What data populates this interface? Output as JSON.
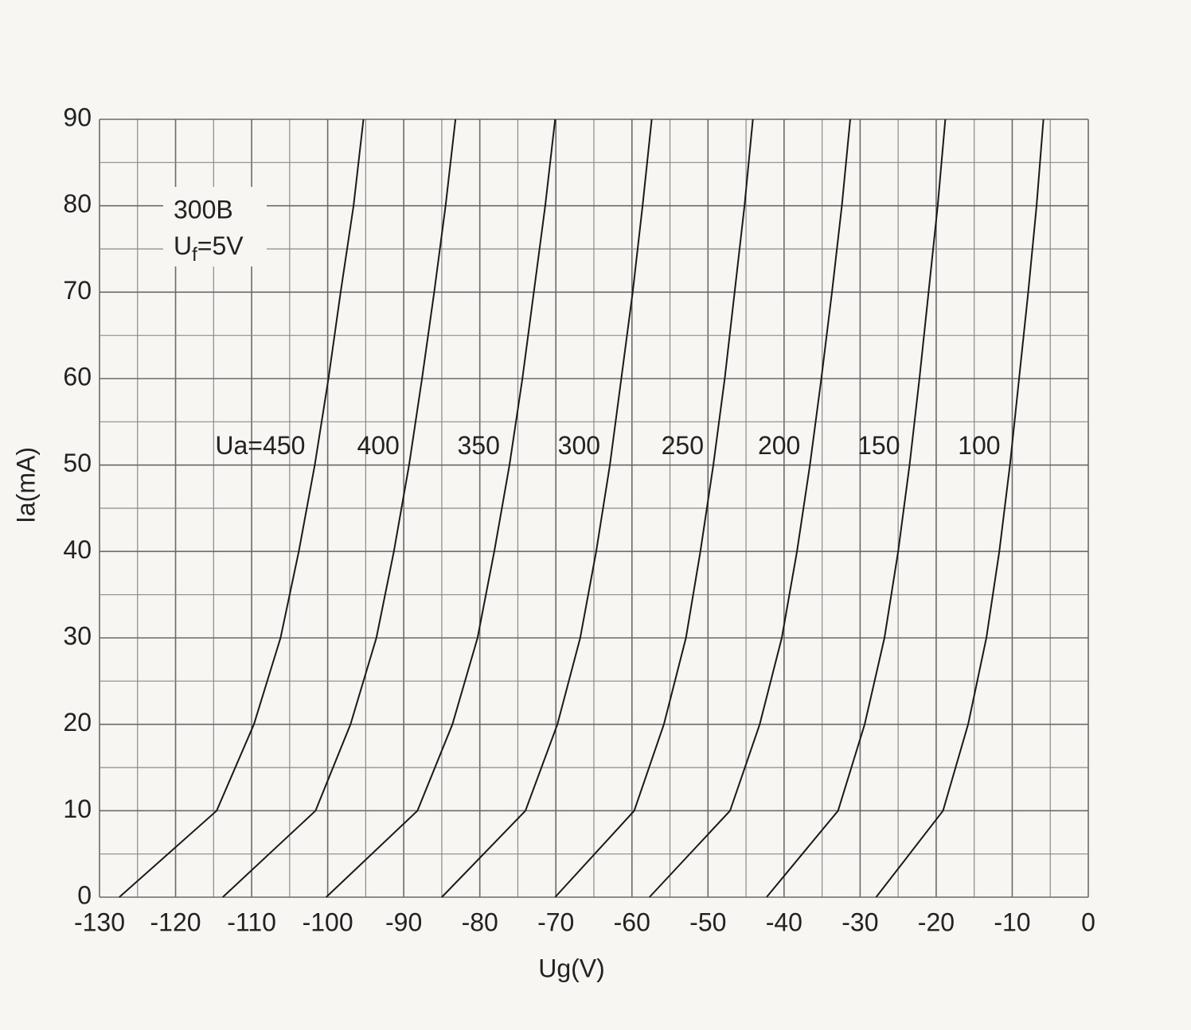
{
  "chart_data": {
    "type": "line",
    "x_label": "Ug(V)",
    "y_label": "Ia(mA)",
    "annotation": {
      "title": "300B",
      "filament": [
        "U",
        "f",
        "=5V"
      ]
    },
    "xlim": [
      -130,
      0
    ],
    "ylim": [
      0,
      90
    ],
    "xticks": [
      -130,
      -120,
      -110,
      -100,
      -90,
      -80,
      -70,
      -60,
      -50,
      -40,
      -30,
      -20,
      -10,
      0
    ],
    "yticks": [
      0,
      10,
      20,
      30,
      40,
      50,
      60,
      70,
      80,
      90
    ],
    "grid": true,
    "minor_grid": true,
    "series": [
      {
        "name": "Ua=450",
        "color": "#1a1a1a",
        "x": [
          -127.4,
          -114.6,
          -109.7,
          -106.2,
          -103.8,
          -101.7,
          -99.9,
          -98.3,
          -96.6,
          -95.3
        ],
        "values": [
          0,
          10,
          20,
          30,
          40,
          50,
          60,
          70,
          80,
          90
        ]
      },
      {
        "name": "400",
        "color": "#1a1a1a",
        "x": [
          -113.8,
          -101.6,
          -97.0,
          -93.6,
          -91.3,
          -89.3,
          -87.6,
          -86.0,
          -84.5,
          -83.2
        ],
        "values": [
          0,
          10,
          20,
          30,
          40,
          50,
          60,
          70,
          80,
          90
        ]
      },
      {
        "name": "350",
        "color": "#1a1a1a",
        "x": [
          -100.2,
          -88.2,
          -83.6,
          -80.3,
          -78.1,
          -76.1,
          -74.4,
          -72.9,
          -71.4,
          -70.1
        ],
        "values": [
          0,
          10,
          20,
          30,
          40,
          50,
          60,
          70,
          80,
          90
        ]
      },
      {
        "name": "300",
        "color": "#1a1a1a",
        "x": [
          -85.0,
          -74.0,
          -69.8,
          -66.8,
          -64.7,
          -62.9,
          -61.4,
          -59.9,
          -58.6,
          -57.4
        ],
        "values": [
          0,
          10,
          20,
          30,
          40,
          50,
          60,
          70,
          80,
          90
        ]
      },
      {
        "name": "250",
        "color": "#1a1a1a",
        "x": [
          -70.1,
          -59.7,
          -55.8,
          -52.9,
          -51.0,
          -49.3,
          -47.8,
          -46.5,
          -45.2,
          -44.1
        ],
        "values": [
          0,
          10,
          20,
          30,
          40,
          50,
          60,
          70,
          80,
          90
        ]
      },
      {
        "name": "200",
        "color": "#1a1a1a",
        "x": [
          -57.7,
          -47.1,
          -43.2,
          -40.3,
          -38.3,
          -36.6,
          -35.1,
          -33.7,
          -32.4,
          -31.3
        ],
        "values": [
          0,
          10,
          20,
          30,
          40,
          50,
          60,
          70,
          80,
          90
        ]
      },
      {
        "name": "150",
        "color": "#1a1a1a",
        "x": [
          -42.3,
          -32.9,
          -29.4,
          -26.8,
          -25.0,
          -23.5,
          -22.2,
          -21.0,
          -19.8,
          -18.8
        ],
        "values": [
          0,
          10,
          20,
          30,
          40,
          50,
          60,
          70,
          80,
          90
        ]
      },
      {
        "name": "100",
        "color": "#1a1a1a",
        "x": [
          -27.9,
          -19.1,
          -15.8,
          -13.4,
          -11.7,
          -10.3,
          -9.1,
          -7.9,
          -6.8,
          -5.9
        ],
        "values": [
          0,
          10,
          20,
          30,
          40,
          50,
          60,
          70,
          80,
          90
        ]
      }
    ]
  }
}
